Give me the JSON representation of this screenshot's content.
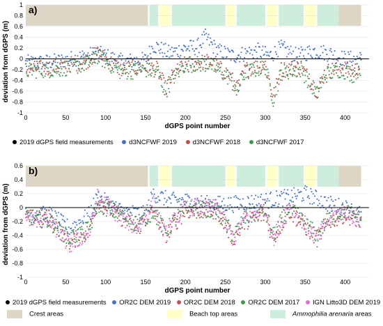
{
  "chart_data": [
    {
      "type": "scatter",
      "panel_label": "a)",
      "xlabel": "dGPS point number",
      "ylabel": "deviation from dGPS (m)",
      "xlim": [
        0,
        430
      ],
      "ylim": [
        -1,
        1
      ],
      "x_ticks": [
        0,
        50,
        100,
        150,
        200,
        250,
        300,
        350,
        400
      ],
      "y_ticks": [
        -1,
        -0.8,
        -0.6,
        -0.4,
        -0.2,
        0,
        0.2,
        0.4,
        0.6,
        0.8,
        1
      ],
      "y_tick_labels": [
        "-1",
        "-0.8",
        "-0.6",
        "-0.4",
        "-0.2",
        "0",
        "0.2",
        "0.4",
        "0.6",
        "0.8",
        "1"
      ],
      "reference_line": {
        "name": "2019 dGPS field measurements",
        "value": 0,
        "color": "#000000"
      },
      "series": [
        {
          "name": "d3NCFWF 2019",
          "color": "#4472C4",
          "anchors": [
            [
              0,
              -0.08
            ],
            [
              40,
              -0.05
            ],
            [
              75,
              0.05
            ],
            [
              90,
              0.1
            ],
            [
              120,
              -0.05
            ],
            [
              150,
              -0.02
            ],
            [
              160,
              0.25
            ],
            [
              180,
              0.1
            ],
            [
              200,
              0.2
            ],
            [
              215,
              0.22
            ],
            [
              225,
              0.4
            ],
            [
              240,
              0.15
            ],
            [
              260,
              0.05
            ],
            [
              290,
              0.15
            ],
            [
              305,
              0.05
            ],
            [
              320,
              0.2
            ],
            [
              340,
              0.05
            ],
            [
              360,
              0.15
            ],
            [
              380,
              0.1
            ],
            [
              400,
              0.0
            ],
            [
              420,
              0.0
            ]
          ],
          "spread": 0.15
        },
        {
          "name": "d3NCFWF 2018",
          "color": "#C0504D",
          "anchors": [
            [
              0,
              -0.2
            ],
            [
              40,
              -0.15
            ],
            [
              75,
              -0.05
            ],
            [
              90,
              0.1
            ],
            [
              120,
              -0.2
            ],
            [
              150,
              -0.15
            ],
            [
              165,
              -0.2
            ],
            [
              175,
              -0.55
            ],
            [
              185,
              -0.3
            ],
            [
              200,
              -0.1
            ],
            [
              230,
              -0.05
            ],
            [
              255,
              -0.3
            ],
            [
              265,
              -0.55
            ],
            [
              275,
              -0.2
            ],
            [
              300,
              -0.1
            ],
            [
              310,
              -0.7
            ],
            [
              320,
              -0.2
            ],
            [
              345,
              -0.15
            ],
            [
              365,
              -0.6
            ],
            [
              375,
              -0.25
            ],
            [
              395,
              -0.15
            ],
            [
              410,
              -0.25
            ],
            [
              420,
              -0.1
            ]
          ],
          "spread": 0.15
        },
        {
          "name": "d3NCFWF 2017",
          "color": "#3E9A4E",
          "anchors": [
            [
              0,
              -0.22
            ],
            [
              40,
              -0.2
            ],
            [
              75,
              -0.1
            ],
            [
              90,
              0.05
            ],
            [
              120,
              -0.25
            ],
            [
              150,
              -0.2
            ],
            [
              165,
              -0.25
            ],
            [
              175,
              -0.6
            ],
            [
              185,
              -0.35
            ],
            [
              200,
              -0.1
            ],
            [
              230,
              -0.1
            ],
            [
              255,
              -0.35
            ],
            [
              265,
              -0.6
            ],
            [
              275,
              -0.25
            ],
            [
              300,
              -0.15
            ],
            [
              310,
              -0.75
            ],
            [
              320,
              -0.25
            ],
            [
              345,
              -0.2
            ],
            [
              365,
              -0.65
            ],
            [
              375,
              -0.3
            ],
            [
              395,
              -0.2
            ],
            [
              410,
              -0.3
            ],
            [
              420,
              -0.15
            ]
          ],
          "spread": 0.15
        }
      ]
    },
    {
      "type": "scatter",
      "panel_label": "b)",
      "xlabel": "dGPS point number",
      "ylabel": "deviation from dGPS (m)",
      "xlim": [
        0,
        430
      ],
      "ylim": [
        -1,
        0.6
      ],
      "x_ticks": [
        0,
        50,
        100,
        150,
        200,
        250,
        300,
        350,
        400
      ],
      "y_ticks": [
        -1,
        -0.8,
        -0.6,
        -0.4,
        -0.2,
        0,
        0.2,
        0.4,
        0.6
      ],
      "y_tick_labels": [
        "-1",
        "-0.8",
        "-0.6",
        "-0.4",
        "-0.2",
        "0",
        "0.2",
        "0.4",
        "0.6"
      ],
      "reference_line": {
        "name": "2019 dGPS field measurements",
        "value": 0,
        "color": "#000000"
      },
      "series": [
        {
          "name": "OR2C DEM 2019",
          "color": "#4472C4",
          "anchors": [
            [
              0,
              -0.1
            ],
            [
              30,
              -0.1
            ],
            [
              55,
              -0.3
            ],
            [
              80,
              -0.1
            ],
            [
              90,
              0.15
            ],
            [
              120,
              -0.05
            ],
            [
              150,
              -0.1
            ],
            [
              160,
              0.2
            ],
            [
              180,
              0.1
            ],
            [
              200,
              0.1
            ],
            [
              230,
              0.05
            ],
            [
              260,
              0.05
            ],
            [
              300,
              0.1
            ],
            [
              330,
              0.15
            ],
            [
              350,
              0.2
            ],
            [
              380,
              0.05
            ],
            [
              400,
              0.0
            ],
            [
              420,
              -0.1
            ]
          ],
          "spread": 0.12
        },
        {
          "name": "OR2C DEM 2018",
          "color": "#C0504D",
          "anchors": [
            [
              0,
              -0.15
            ],
            [
              30,
              -0.15
            ],
            [
              55,
              -0.5
            ],
            [
              80,
              -0.35
            ],
            [
              90,
              0.1
            ],
            [
              120,
              -0.15
            ],
            [
              140,
              -0.3
            ],
            [
              160,
              -0.05
            ],
            [
              175,
              -0.4
            ],
            [
              185,
              -0.25
            ],
            [
              200,
              -0.05
            ],
            [
              240,
              -0.05
            ],
            [
              260,
              -0.45
            ],
            [
              275,
              -0.2
            ],
            [
              300,
              -0.1
            ],
            [
              310,
              -0.45
            ],
            [
              330,
              -0.05
            ],
            [
              365,
              -0.45
            ],
            [
              380,
              -0.2
            ],
            [
              400,
              -0.1
            ],
            [
              420,
              -0.2
            ]
          ],
          "spread": 0.12
        },
        {
          "name": "OR2C DEM 2017",
          "color": "#3E9A4E",
          "anchors": [
            [
              0,
              -0.12
            ],
            [
              30,
              -0.2
            ],
            [
              55,
              -0.45
            ],
            [
              80,
              -0.3
            ],
            [
              90,
              0.05
            ],
            [
              120,
              -0.1
            ],
            [
              140,
              -0.25
            ],
            [
              160,
              -0.05
            ],
            [
              175,
              -0.35
            ],
            [
              185,
              -0.2
            ],
            [
              200,
              0.0
            ],
            [
              240,
              -0.05
            ],
            [
              260,
              -0.4
            ],
            [
              275,
              -0.15
            ],
            [
              300,
              -0.05
            ],
            [
              310,
              -0.4
            ],
            [
              330,
              0.0
            ],
            [
              365,
              -0.4
            ],
            [
              380,
              -0.15
            ],
            [
              400,
              -0.05
            ],
            [
              420,
              -0.15
            ]
          ],
          "spread": 0.12
        },
        {
          "name": "IGN Litto3D DEM 2019",
          "color": "#E26BE0",
          "anchors": [
            [
              0,
              -0.15
            ],
            [
              30,
              -0.2
            ],
            [
              55,
              -0.55
            ],
            [
              80,
              -0.35
            ],
            [
              90,
              0.15
            ],
            [
              120,
              -0.15
            ],
            [
              140,
              -0.3
            ],
            [
              160,
              0.05
            ],
            [
              175,
              -0.4
            ],
            [
              185,
              -0.2
            ],
            [
              200,
              0.0
            ],
            [
              240,
              0.0
            ],
            [
              260,
              -0.45
            ],
            [
              275,
              -0.15
            ],
            [
              300,
              0.0
            ],
            [
              310,
              -0.45
            ],
            [
              330,
              0.05
            ],
            [
              365,
              -0.45
            ],
            [
              380,
              -0.15
            ],
            [
              400,
              -0.05
            ],
            [
              420,
              -0.2
            ]
          ],
          "spread": 0.12
        }
      ]
    }
  ],
  "areas": {
    "crest": {
      "label": "Crest areas",
      "color": "#DDD6C4",
      "ranges": [
        [
          0,
          153
        ],
        [
          392,
          420
        ]
      ]
    },
    "beach_top": {
      "label": "Beach top areas",
      "color": "#FFFFC8",
      "ranges": [
        [
          168,
          181
        ],
        [
          252,
          262
        ],
        [
          302,
          315
        ],
        [
          350,
          363
        ]
      ]
    },
    "ammophilia": {
      "label_italic": "Ammophilia arenaria",
      "label_suffix": " areas",
      "color": "#CDEEDD",
      "ranges": [
        [
          155,
          166
        ],
        [
          183,
          250
        ],
        [
          264,
          300
        ],
        [
          317,
          348
        ],
        [
          365,
          392
        ]
      ]
    }
  }
}
